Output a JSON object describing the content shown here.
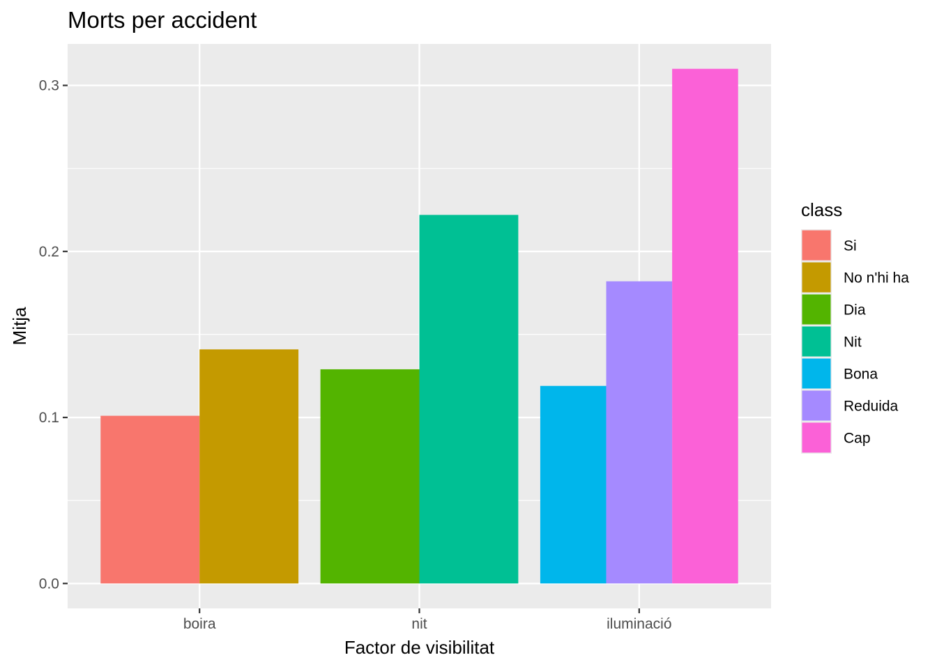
{
  "chart_data": {
    "type": "bar",
    "title": "Morts per accident",
    "xlabel": "Factor de visibilitat",
    "ylabel": "Mitja",
    "categories": [
      "boira",
      "nit",
      "iluminació"
    ],
    "groups": [
      {
        "category": "boira",
        "bars": [
          {
            "class": "Si",
            "value": 0.101
          },
          {
            "class": "No n'hi ha",
            "value": 0.141
          }
        ]
      },
      {
        "category": "nit",
        "bars": [
          {
            "class": "Dia",
            "value": 0.129
          },
          {
            "class": "Nit",
            "value": 0.222
          }
        ]
      },
      {
        "category": "iluminació",
        "bars": [
          {
            "class": "Bona",
            "value": 0.119
          },
          {
            "class": "Reduida",
            "value": 0.182
          },
          {
            "class": "Cap",
            "value": 0.31
          }
        ]
      }
    ],
    "ylim": [
      -0.015,
      0.325
    ],
    "yticks": [
      0.0,
      0.1,
      0.2,
      0.3
    ],
    "ytick_labels": [
      "0.0",
      "0.1",
      "0.2",
      "0.3"
    ],
    "grid": true,
    "legend": {
      "title": "class",
      "position": "right",
      "items": [
        {
          "label": "Si",
          "color": "#F8766D"
        },
        {
          "label": "No n'hi ha",
          "color": "#C49A00"
        },
        {
          "label": "Dia",
          "color": "#53B400"
        },
        {
          "label": "Nit",
          "color": "#00C094"
        },
        {
          "label": "Bona",
          "color": "#00B6EB"
        },
        {
          "label": "Reduida",
          "color": "#A58AFF"
        },
        {
          "label": "Cap",
          "color": "#FB61D7"
        }
      ]
    },
    "colors": {
      "panel_background": "#EBEBEB",
      "grid_line": "#FFFFFF",
      "tick_mark": "#333333"
    }
  }
}
